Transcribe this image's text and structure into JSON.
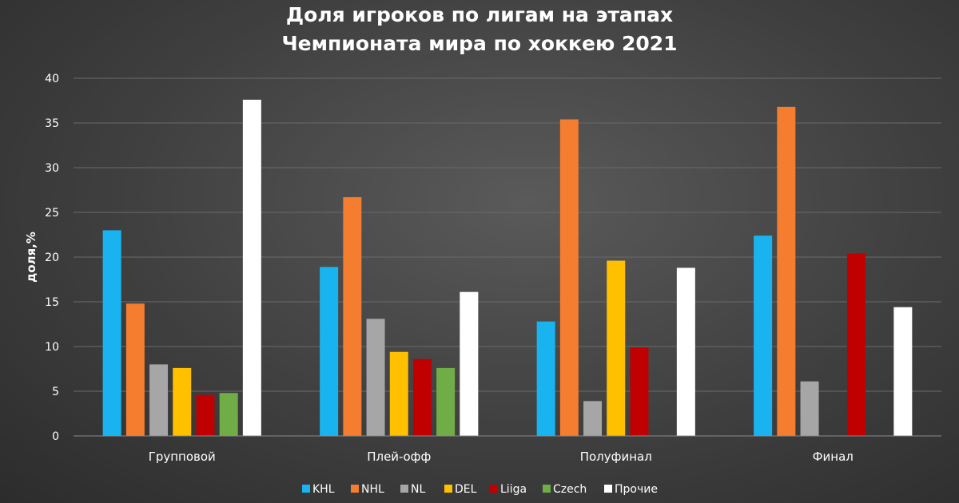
{
  "chart_data": {
    "type": "bar",
    "title": "Доля игроков по лигам на этапах Чемпионата мира по хоккею 2021",
    "title_lines": [
      "Доля игроков по лигам на этапах",
      "Чемпионата мира по хоккею 2021"
    ],
    "xlabel": "",
    "ylabel": "доля,%",
    "ylim": [
      0,
      40
    ],
    "yticks": [
      0,
      5,
      10,
      15,
      20,
      25,
      30,
      35,
      40
    ],
    "grid": true,
    "legend_position": "bottom",
    "categories": [
      "Групповой",
      "Плей-офф",
      "Полуфинал",
      "Финал"
    ],
    "series": [
      {
        "name": "KHL",
        "color": "#19B4F0",
        "values": [
          23.0,
          18.9,
          12.8,
          22.4
        ]
      },
      {
        "name": "NHL",
        "color": "#F47D2F",
        "values": [
          14.8,
          26.7,
          35.4,
          36.8
        ]
      },
      {
        "name": "NL",
        "color": "#A6A6A6",
        "values": [
          8.0,
          13.1,
          3.9,
          6.1
        ]
      },
      {
        "name": "DEL",
        "color": "#FFC000",
        "values": [
          7.6,
          9.4,
          19.6,
          0
        ]
      },
      {
        "name": "Liiga",
        "color": "#C00000",
        "values": [
          4.6,
          8.6,
          9.9,
          20.4
        ]
      },
      {
        "name": "Czech",
        "color": "#70AD47",
        "values": [
          4.8,
          7.6,
          0,
          0
        ]
      },
      {
        "name": "Прочие",
        "color": "#FFFFFF",
        "values": [
          37.6,
          16.1,
          18.8,
          14.4
        ]
      }
    ]
  }
}
